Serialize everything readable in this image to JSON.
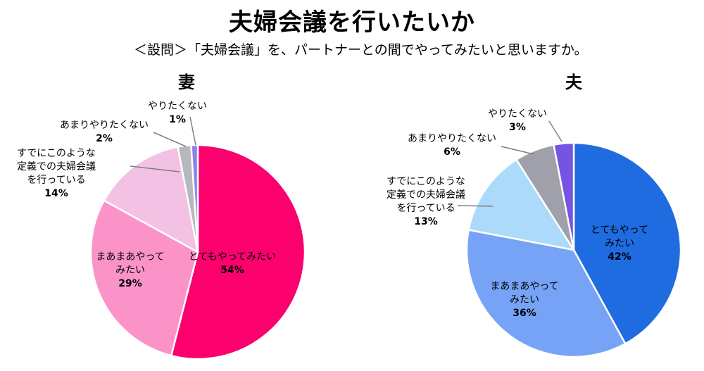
{
  "header": {
    "title": "夫婦会議を行いたいか",
    "subtitle": "＜設問＞「夫婦会議」を、パートナーとの間でやってみたいと思いますか。"
  },
  "chart_data": [
    {
      "type": "pie",
      "title": "妻",
      "start_angle_deg": 0,
      "direction": "clockwise",
      "slices": [
        {
          "label": [
            "とてもやってみたい"
          ],
          "value": 54,
          "value_label": "54%",
          "color": "#fc006e"
        },
        {
          "label": [
            "まあまあやって",
            "みたい"
          ],
          "value": 29,
          "value_label": "29%",
          "color": "#fb93c8"
        },
        {
          "label": [
            "すでにこのような",
            "定義での夫婦会議",
            "を行っている"
          ],
          "value": 14,
          "value_label": "14%",
          "color": "#f2c1e4"
        },
        {
          "label": [
            "あまりやりたくない"
          ],
          "value": 2,
          "value_label": "2%",
          "color": "#b7b8bd"
        },
        {
          "label": [
            "やりたくない"
          ],
          "value": 1,
          "value_label": "1%",
          "color": "#8a82e9"
        }
      ]
    },
    {
      "type": "pie",
      "title": "夫",
      "start_angle_deg": 0,
      "direction": "clockwise",
      "slices": [
        {
          "label": [
            "とてもやって",
            "みたい"
          ],
          "value": 42,
          "value_label": "42%",
          "color": "#1e6ce0"
        },
        {
          "label": [
            "まあまあやって",
            "みたい"
          ],
          "value": 36,
          "value_label": "36%",
          "color": "#76a3f5"
        },
        {
          "label": [
            "すでにこのような",
            "定義での夫婦会議",
            "を行っている"
          ],
          "value": 13,
          "value_label": "13%",
          "color": "#abdafa"
        },
        {
          "label": [
            "あまりやりたくない"
          ],
          "value": 6,
          "value_label": "6%",
          "color": "#a0a0aa"
        },
        {
          "label": [
            "やりたくない"
          ],
          "value": 3,
          "value_label": "3%",
          "color": "#7553e3"
        }
      ]
    }
  ]
}
